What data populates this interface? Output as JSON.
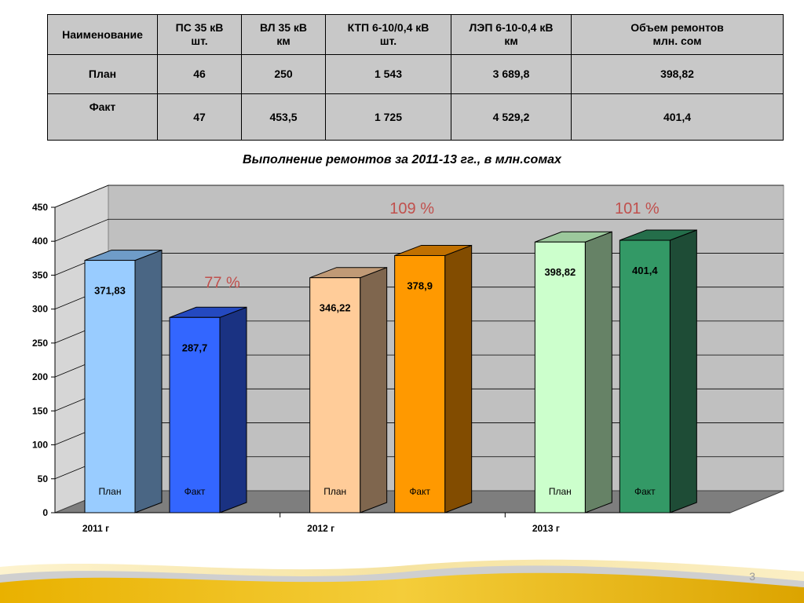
{
  "table": {
    "headers": [
      [
        "Наименование"
      ],
      [
        "ПС 35 кВ",
        "шт."
      ],
      [
        "ВЛ 35 кВ",
        "км"
      ],
      [
        "КТП 6-10/0,4 кВ",
        "шт."
      ],
      [
        "ЛЭП 6-10-0,4 кВ",
        "км"
      ],
      [
        "Объем ремонтов",
        "млн. сом"
      ]
    ],
    "rows": [
      [
        "План",
        "46",
        "250",
        "1 543",
        "3 689,8",
        "398,82"
      ],
      [
        "Факт",
        "47",
        "453,5",
        "1 725",
        "4 529,2",
        "401,4"
      ]
    ]
  },
  "chart_title": "Выполнение ремонтов за 2011-13 гг., в млн.сомах",
  "chart_data": {
    "type": "bar",
    "title": "Выполнение ремонтов за 2011-13 гг., в млн.сомах",
    "categories": [
      "2011 г",
      "2012 г",
      "2013 г"
    ],
    "series": [
      {
        "name": "План",
        "values": [
          371.83,
          346.22,
          398.82
        ],
        "value_labels": [
          "371,83",
          "346,22",
          "398,82"
        ],
        "front_colors": [
          "#99ccff",
          "#ffcc99",
          "#ccffcc"
        ],
        "top_colors": [
          "#6f9cc8",
          "#c09a76",
          "#9cc89c"
        ],
        "side_colors": [
          "#4a6684",
          "#7f664e",
          "#668266"
        ]
      },
      {
        "name": "Факт",
        "values": [
          287.7,
          378.9,
          401.4
        ],
        "value_labels": [
          "287,7",
          "378,9",
          "401,4"
        ],
        "front_colors": [
          "#3366ff",
          "#ff9900",
          "#339966"
        ],
        "top_colors": [
          "#2449c0",
          "#c07000",
          "#246e4a"
        ],
        "side_colors": [
          "#1a3282",
          "#824c00",
          "#1e4c36"
        ]
      }
    ],
    "percent_labels": [
      "77 %",
      "109 %",
      "101 %"
    ],
    "percent_color": "#c0504d",
    "ylim": [
      0,
      450
    ],
    "yticks": [
      0,
      50,
      100,
      150,
      200,
      250,
      300,
      350,
      400,
      450
    ],
    "grid": true,
    "legend": "none"
  },
  "page_number": "3"
}
